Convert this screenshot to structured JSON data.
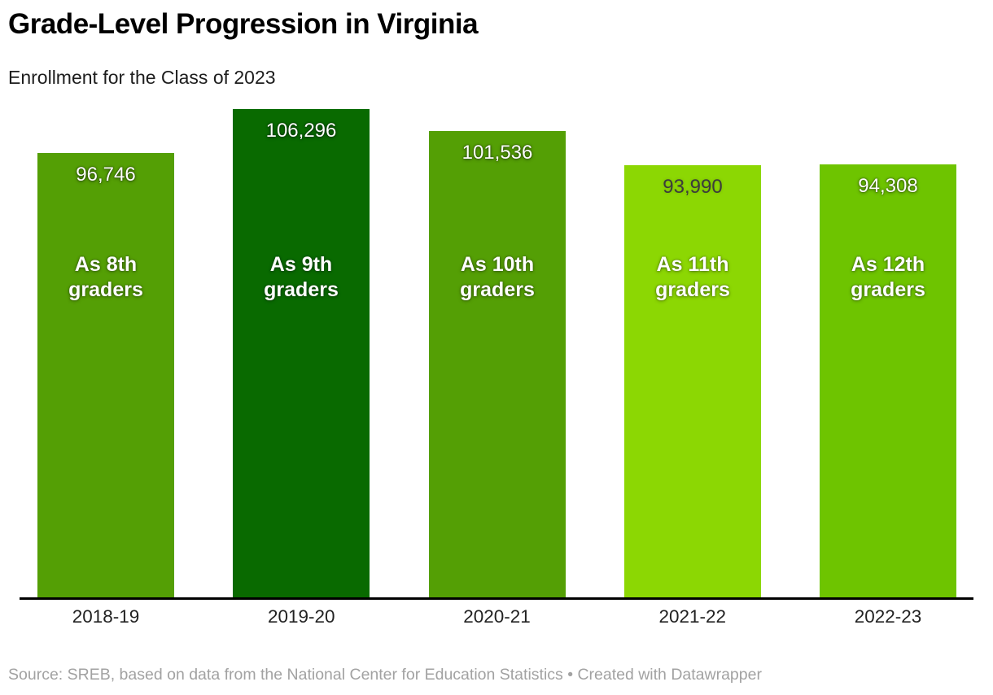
{
  "header": {
    "title": "Grade-Level Progression in Virginia",
    "subtitle": "Enrollment for the Class of 2023"
  },
  "chart_data": {
    "type": "bar",
    "title": "Grade-Level Progression in Virginia",
    "subtitle": "Enrollment for the Class of 2023",
    "categories": [
      "2018-19",
      "2019-20",
      "2020-21",
      "2021-22",
      "2022-23"
    ],
    "values": [
      96746,
      106296,
      101536,
      93990,
      94308
    ],
    "value_labels": [
      "96,746",
      "106,296",
      "101,536",
      "93,990",
      "94,308"
    ],
    "bar_labels": [
      "As 8th\ngraders",
      "As 9th\ngraders",
      "As 10th\ngraders",
      "As 11th\ngraders",
      "As 12th\ngraders"
    ],
    "bar_colors": [
      "#549f05",
      "#096a00",
      "#549f05",
      "#8cd703",
      "#6ec400"
    ],
    "value_label_styles": [
      "light",
      "light",
      "light",
      "dark",
      "light"
    ],
    "xlabel": "",
    "ylabel": "",
    "ylim": [
      0,
      106296
    ],
    "grid": false,
    "legend": false,
    "axis_line_color": "#000000"
  },
  "footer": {
    "source": "Source: SREB, based on data from the National Center for Education Statistics • Created with Datawrapper"
  }
}
